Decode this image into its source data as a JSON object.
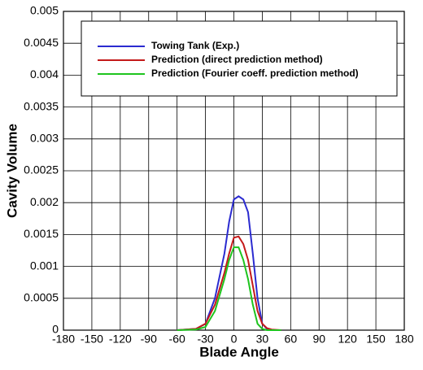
{
  "chart_data": {
    "type": "line",
    "x_label": "Blade Angle",
    "y_label": "Cavity Volume",
    "x": [
      -60,
      -40,
      -30,
      -20,
      -10,
      -5,
      0,
      5,
      10,
      15,
      20,
      25,
      30,
      35,
      40,
      50
    ],
    "series": [
      {
        "name": "Towing Tank (Exp.)",
        "color": "#2b2bd0",
        "values": [
          0,
          2e-05,
          0.0001,
          0.0005,
          0.0012,
          0.0017,
          0.00205,
          0.0021,
          0.00205,
          0.00185,
          0.0012,
          0.0005,
          0.0001,
          2e-05,
          0,
          0
        ]
      },
      {
        "name": "Prediction (direct prediction method)",
        "color": "#c41a1a",
        "values": [
          0,
          2e-05,
          0.0001,
          0.0004,
          0.0009,
          0.0012,
          0.00145,
          0.00147,
          0.00135,
          0.0011,
          0.0007,
          0.0003,
          0.0001,
          3e-05,
          1e-05,
          0
        ]
      },
      {
        "name": "Prediction (Fourier coeff. prediction method)",
        "color": "#1ec41e",
        "values": [
          0,
          1e-05,
          5e-05,
          0.0003,
          0.0008,
          0.0011,
          0.0013,
          0.0013,
          0.0011,
          0.0008,
          0.0004,
          0.0001,
          2e-05,
          0,
          0,
          0
        ]
      }
    ],
    "xlim": [
      -180,
      180
    ],
    "xticks": [
      -180,
      -150,
      -120,
      -90,
      -60,
      -30,
      0,
      30,
      60,
      90,
      120,
      150,
      180
    ],
    "ylim": [
      0,
      0.005
    ],
    "yticks": [
      0,
      0.0005,
      0.001,
      0.0015,
      0.002,
      0.0025,
      0.003,
      0.0035,
      0.004,
      0.0045,
      0.005
    ],
    "grid": true,
    "legend": "upper left"
  }
}
